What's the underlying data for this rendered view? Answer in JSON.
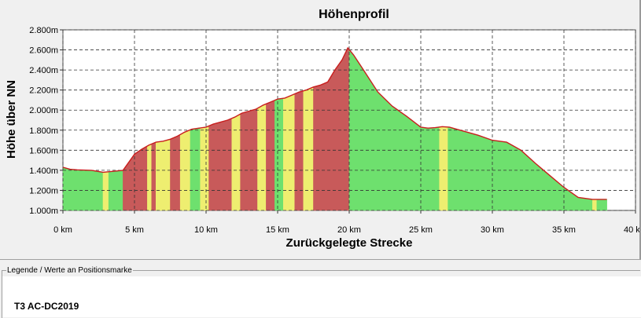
{
  "chart_data": {
    "type": "area",
    "title": "Höhenprofil",
    "xlabel": "Zurückgelegte Strecke",
    "ylabel": "Höhe über NN",
    "xlim": [
      0,
      40
    ],
    "ylim": [
      1000,
      2800
    ],
    "x_ticks": [
      0,
      5,
      10,
      15,
      20,
      25,
      30,
      35,
      40
    ],
    "x_tick_labels": [
      "0 km",
      "5 km",
      "10 km",
      "15 km",
      "20 km",
      "25 km",
      "30 km",
      "35 km",
      "40 km"
    ],
    "y_ticks": [
      1000,
      1200,
      1400,
      1600,
      1800,
      2000,
      2200,
      2400,
      2600,
      2800
    ],
    "y_tick_labels": [
      "1.000m",
      "1.200m",
      "1.400m",
      "1.600m",
      "1.800m",
      "2.000m",
      "2.200m",
      "2.400m",
      "2.600m",
      "2.800m"
    ],
    "grid": true,
    "x": [
      0,
      0.5,
      1,
      2,
      2.8,
      3.5,
      4.2,
      4.6,
      5,
      5.5,
      6,
      6.5,
      7,
      7.5,
      8,
      8.5,
      9,
      9.5,
      10,
      10.5,
      11,
      11.5,
      12,
      12.5,
      13,
      13.5,
      14,
      14.5,
      15,
      15.5,
      16,
      16.5,
      17,
      17.5,
      18,
      18.5,
      19,
      19.5,
      19.9,
      20.3,
      21,
      22,
      23,
      24,
      25,
      25.5,
      26,
      26.5,
      27,
      28,
      29,
      30,
      30.5,
      31,
      32,
      33,
      34,
      35,
      36,
      37,
      37.5,
      38
    ],
    "elevation": [
      1430,
      1410,
      1405,
      1400,
      1380,
      1390,
      1400,
      1480,
      1560,
      1610,
      1650,
      1680,
      1690,
      1710,
      1740,
      1780,
      1810,
      1820,
      1830,
      1860,
      1880,
      1900,
      1930,
      1970,
      1990,
      2010,
      2050,
      2080,
      2110,
      2120,
      2150,
      2180,
      2200,
      2230,
      2250,
      2280,
      2400,
      2500,
      2620,
      2550,
      2400,
      2180,
      2040,
      1940,
      1830,
      1820,
      1825,
      1835,
      1830,
      1790,
      1750,
      1700,
      1690,
      1680,
      1600,
      1470,
      1350,
      1230,
      1130,
      1110,
      1110,
      1110
    ],
    "segments": [
      {
        "from": 0,
        "to": 2.8,
        "grade": "low"
      },
      {
        "from": 2.8,
        "to": 3.2,
        "grade": "medium"
      },
      {
        "from": 3.2,
        "to": 4.2,
        "grade": "low"
      },
      {
        "from": 4.2,
        "to": 5.9,
        "grade": "high"
      },
      {
        "from": 5.9,
        "to": 6.2,
        "grade": "medium"
      },
      {
        "from": 6.2,
        "to": 6.5,
        "grade": "high"
      },
      {
        "from": 6.5,
        "to": 7.5,
        "grade": "medium"
      },
      {
        "from": 7.5,
        "to": 8.2,
        "grade": "high"
      },
      {
        "from": 8.2,
        "to": 8.9,
        "grade": "medium"
      },
      {
        "from": 8.9,
        "to": 9.6,
        "grade": "low"
      },
      {
        "from": 9.6,
        "to": 10.2,
        "grade": "medium"
      },
      {
        "from": 10.2,
        "to": 11.8,
        "grade": "high"
      },
      {
        "from": 11.8,
        "to": 12.4,
        "grade": "medium"
      },
      {
        "from": 12.4,
        "to": 13.6,
        "grade": "high"
      },
      {
        "from": 13.6,
        "to": 14.2,
        "grade": "medium"
      },
      {
        "from": 14.2,
        "to": 14.8,
        "grade": "high"
      },
      {
        "from": 14.8,
        "to": 15.4,
        "grade": "low"
      },
      {
        "from": 15.4,
        "to": 16.2,
        "grade": "medium"
      },
      {
        "from": 16.2,
        "to": 16.8,
        "grade": "high"
      },
      {
        "from": 16.8,
        "to": 17.5,
        "grade": "medium"
      },
      {
        "from": 17.5,
        "to": 20.0,
        "grade": "high"
      },
      {
        "from": 20.0,
        "to": 26.3,
        "grade": "low"
      },
      {
        "from": 26.3,
        "to": 26.9,
        "grade": "medium"
      },
      {
        "from": 26.9,
        "to": 37.0,
        "grade": "low"
      },
      {
        "from": 37.0,
        "to": 37.3,
        "grade": "medium"
      },
      {
        "from": 37.3,
        "to": 38.0,
        "grade": "low"
      }
    ],
    "colors": {
      "low": "#6ee06e",
      "medium": "#eeee70",
      "high": "#c85a5a",
      "line": "#c81e1e",
      "plot_bg": "#ffffff",
      "grid": "#333333"
    }
  },
  "legend": {
    "title": "Legende / Werte an Positionsmarke",
    "item": "T3 AC-DC2019"
  }
}
